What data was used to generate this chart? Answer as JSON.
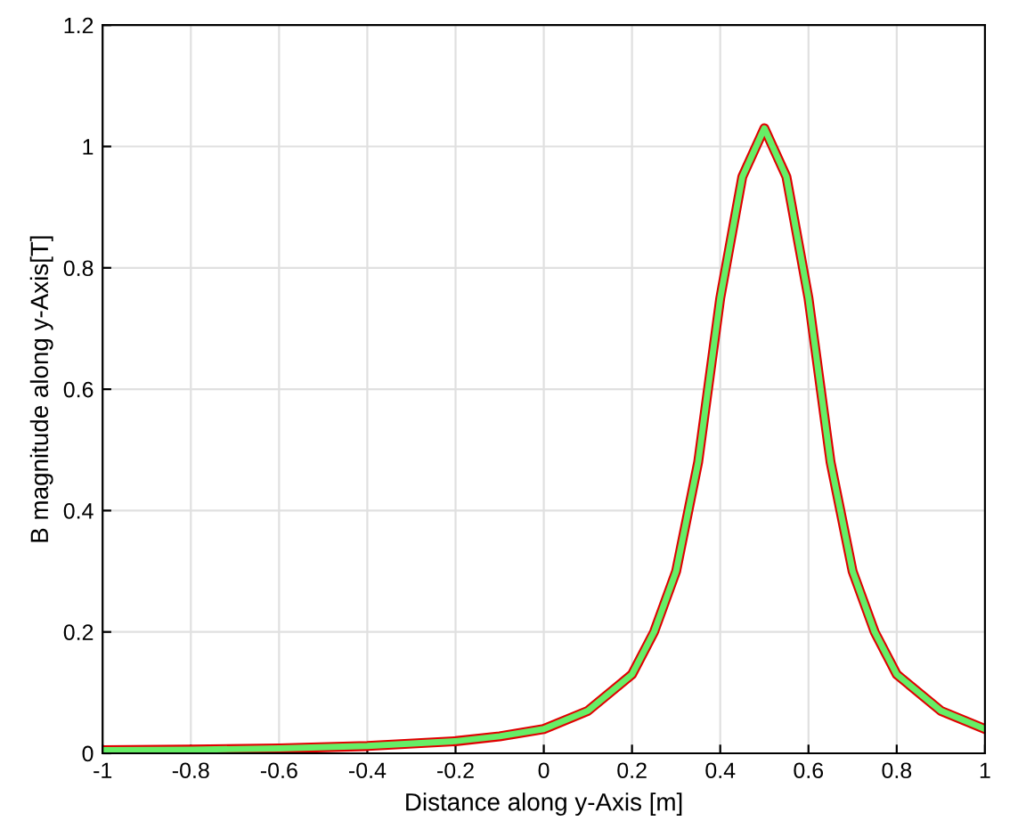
{
  "chart_data": {
    "type": "line",
    "xlabel": "Distance along y-Axis [m]",
    "ylabel": "B magnitude along y-Axis[T]",
    "x": [
      -1,
      -0.8,
      -0.6,
      -0.4,
      -0.2,
      -0.1,
      0,
      0.1,
      0.2,
      0.25,
      0.3,
      0.35,
      0.4,
      0.45,
      0.5,
      0.55,
      0.6,
      0.65,
      0.7,
      0.75,
      0.8,
      0.9,
      1.0
    ],
    "series": [
      {
        "color": "#e00000",
        "values": [
          0.005,
          0.006,
          0.008,
          0.012,
          0.02,
          0.028,
          0.04,
          0.07,
          0.13,
          0.2,
          0.3,
          0.48,
          0.75,
          0.95,
          1.03,
          0.95,
          0.75,
          0.48,
          0.3,
          0.2,
          0.13,
          0.07,
          0.04
        ]
      },
      {
        "color": "#66ee66",
        "values": [
          0.005,
          0.006,
          0.008,
          0.012,
          0.02,
          0.028,
          0.04,
          0.07,
          0.13,
          0.2,
          0.3,
          0.48,
          0.75,
          0.95,
          1.03,
          0.95,
          0.75,
          0.48,
          0.3,
          0.2,
          0.13,
          0.07,
          0.04
        ]
      }
    ],
    "xlim": [
      -1,
      1
    ],
    "xticks": [
      -1,
      -0.8,
      -0.6,
      -0.4,
      -0.2,
      0,
      0.2,
      0.4,
      0.6,
      0.8,
      1
    ],
    "ylim": [
      0,
      1.2
    ],
    "yticks": [
      0,
      0.2,
      0.4,
      0.6,
      0.8,
      1,
      1.2
    ],
    "grid": true,
    "line_style": "solid"
  }
}
